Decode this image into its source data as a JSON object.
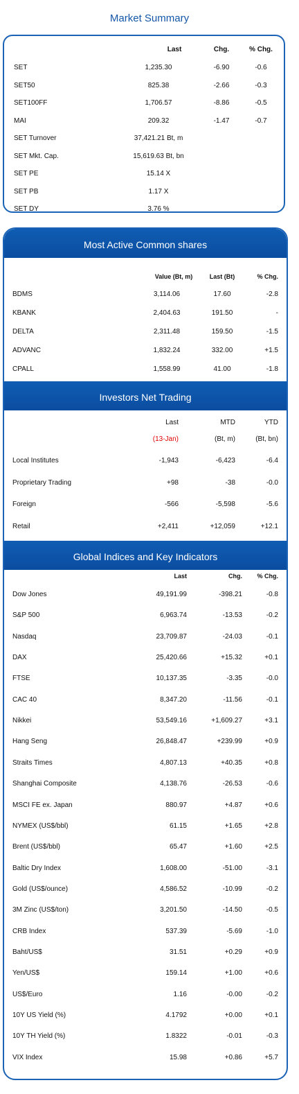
{
  "market_summary": {
    "title": "Market Summary",
    "headers": {
      "last": "Last",
      "chg": "Chg.",
      "pct": "% Chg."
    },
    "rows": [
      {
        "name": "SET",
        "last": "1,235.30",
        "chg": "-6.90",
        "pct": "-0.6"
      },
      {
        "name": "SET50",
        "last": "825.38",
        "chg": "-2.66",
        "pct": "-0.3"
      },
      {
        "name": "SET100FF",
        "last": "1,706.57",
        "chg": "-8.86",
        "pct": "-0.5"
      },
      {
        "name": "MAI",
        "last": "209.32",
        "chg": "-1.47",
        "pct": "-0.7"
      },
      {
        "name": "SET Turnover",
        "last": "37,421.21 Bt, m",
        "chg": "",
        "pct": ""
      },
      {
        "name": "SET Mkt. Cap.",
        "last": "15,619.63 Bt, bn",
        "chg": "",
        "pct": ""
      },
      {
        "name": "SET PE",
        "last": "15.14 X",
        "chg": "",
        "pct": ""
      },
      {
        "name": "SET PB",
        "last": "1.17 X",
        "chg": "",
        "pct": ""
      },
      {
        "name": "SET DY",
        "last": "3.76 %",
        "chg": "",
        "pct": ""
      }
    ]
  },
  "most_active": {
    "title": "Most Active Common shares",
    "headers": {
      "value": "Value (Bt, m)",
      "last": "Last (Bt)",
      "pct": "% Chg."
    },
    "rows": [
      {
        "name": "BDMS",
        "value": "3,114.06",
        "last": "17.60",
        "pct": "-2.8"
      },
      {
        "name": "KBANK",
        "value": "2,404.63",
        "last": "191.50",
        "pct": "-"
      },
      {
        "name": "DELTA",
        "value": "2,311.48",
        "last": "159.50",
        "pct": "-1.5"
      },
      {
        "name": "ADVANC",
        "value": "1,832.24",
        "last": "332.00",
        "pct": "+1.5"
      },
      {
        "name": "CPALL",
        "value": "1,558.99",
        "last": "41.00",
        "pct": "-1.8"
      }
    ]
  },
  "investors": {
    "title": "Investors Net Trading",
    "headers": {
      "last": "Last",
      "mtd": "MTD",
      "ytd": "YTD",
      "date": "(13-Jan)",
      "mtd_unit": "(Bt, m)",
      "ytd_unit": "(Bt, bn)"
    },
    "rows": [
      {
        "name": "Local Institutes",
        "last": "-1,943",
        "mtd": "-6,423",
        "ytd": "-6.4"
      },
      {
        "name": "Proprietary Trading",
        "last": "+98",
        "mtd": "-38",
        "ytd": "-0.0"
      },
      {
        "name": "Foreign",
        "last": "-566",
        "mtd": "-5,598",
        "ytd": "-5.6"
      },
      {
        "name": "Retail",
        "last": "+2,411",
        "mtd": "+12,059",
        "ytd": "+12.1"
      }
    ]
  },
  "global": {
    "title": "Global Indices and Key Indicators",
    "headers": {
      "last": "Last",
      "chg": "Chg.",
      "pct": "% Chg."
    },
    "rows": [
      {
        "name": "Dow Jones",
        "last": "49,191.99",
        "chg": "-398.21",
        "pct": "-0.8"
      },
      {
        "name": "S&P 500",
        "last": "6,963.74",
        "chg": "-13.53",
        "pct": "-0.2"
      },
      {
        "name": "Nasdaq",
        "last": "23,709.87",
        "chg": "-24.03",
        "pct": "-0.1"
      },
      {
        "name": "DAX",
        "last": "25,420.66",
        "chg": "+15.32",
        "pct": "+0.1"
      },
      {
        "name": "FTSE",
        "last": "10,137.35",
        "chg": "-3.35",
        "pct": "-0.0"
      },
      {
        "name": "CAC 40",
        "last": "8,347.20",
        "chg": "-11.56",
        "pct": "-0.1"
      },
      {
        "name": "Nikkei",
        "last": "53,549.16",
        "chg": "+1,609.27",
        "pct": "+3.1"
      },
      {
        "name": "Hang Seng",
        "last": "26,848.47",
        "chg": "+239.99",
        "pct": "+0.9"
      },
      {
        "name": "Straits Times",
        "last": "4,807.13",
        "chg": "+40.35",
        "pct": "+0.8"
      },
      {
        "name": "Shanghai Composite",
        "last": "4,138.76",
        "chg": "-26.53",
        "pct": "-0.6"
      },
      {
        "name": "MSCI FE ex. Japan",
        "last": "880.97",
        "chg": "+4.87",
        "pct": "+0.6"
      },
      {
        "name": "NYMEX (US$/bbl)",
        "last": "61.15",
        "chg": "+1.65",
        "pct": "+2.8"
      },
      {
        "name": "Brent (US$/bbl)",
        "last": "65.47",
        "chg": "+1.60",
        "pct": "+2.5"
      },
      {
        "name": "Baltic Dry Index",
        "last": "1,608.00",
        "chg": "-51.00",
        "pct": "-3.1"
      },
      {
        "name": "Gold (US$/ounce)",
        "last": "4,586.52",
        "chg": "-10.99",
        "pct": "-0.2"
      },
      {
        "name": "3M Zinc (US$/ton)",
        "last": "3,201.50",
        "chg": "-14.50",
        "pct": "-0.5"
      },
      {
        "name": "CRB Index",
        "last": "537.39",
        "chg": "-5.69",
        "pct": "-1.0"
      },
      {
        "name": "Baht/US$",
        "last": "31.51",
        "chg": "+0.29",
        "pct": "+0.9"
      },
      {
        "name": "Yen/US$",
        "last": "159.14",
        "chg": "+1.00",
        "pct": "+0.6"
      },
      {
        "name": "US$/Euro",
        "last": "1.16",
        "chg": "-0.00",
        "pct": "-0.2"
      },
      {
        "name": "10Y US Yield (%)",
        "last": "4.1792",
        "chg": "+0.00",
        "pct": "+0.1"
      },
      {
        "name": "10Y TH Yield (%)",
        "last": "1.8322",
        "chg": "-0.01",
        "pct": "-0.3"
      },
      {
        "name": "VIX Index",
        "last": "15.98",
        "chg": "+0.86",
        "pct": "+5.7"
      }
    ]
  }
}
